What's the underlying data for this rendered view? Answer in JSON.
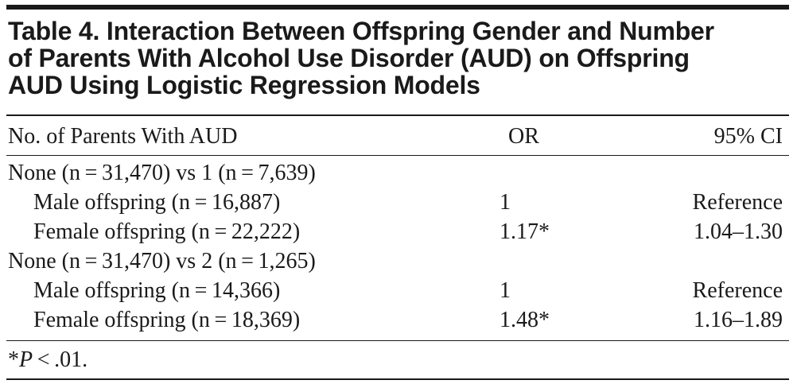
{
  "table": {
    "title_lines": [
      "Table 4. Interaction Between Offspring Gender and Number",
      "of Parents With Alcohol Use Disorder (AUD) on Offspring",
      "AUD Using Logistic Regression Models"
    ],
    "headers": {
      "label": "No. of Parents With AUD",
      "or": "OR",
      "ci": "95% CI"
    },
    "rows": [
      {
        "label": "None (n = 31,470) vs 1 (n = 7,639)",
        "or": "",
        "ci": ""
      },
      {
        "label": "Male offspring (n = 16,887)",
        "or": "1",
        "ci": "Reference"
      },
      {
        "label": "Female offspring (n = 22,222)",
        "or": "1.17*",
        "ci": "1.04–1.30"
      },
      {
        "label": "None (n = 31,470) vs 2 (n = 1,265)",
        "or": "",
        "ci": ""
      },
      {
        "label": "Male offspring (n = 14,366)",
        "or": "1",
        "ci": "Reference"
      },
      {
        "label": "Female offspring (n = 18,369)",
        "or": "1.48*",
        "ci": "1.16–1.89"
      }
    ],
    "footnote": {
      "star": "*",
      "p_symbol": "P",
      "rest": " < .01."
    }
  }
}
